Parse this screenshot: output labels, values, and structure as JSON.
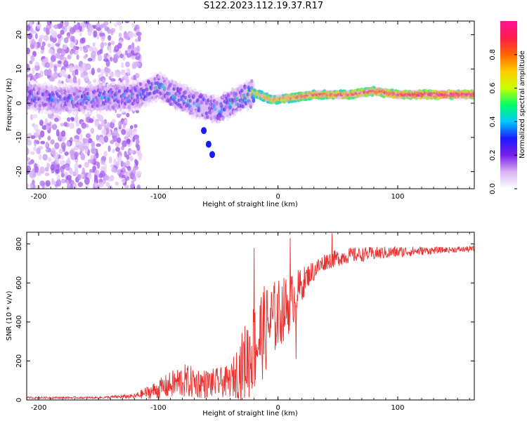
{
  "title": "S122.2023.112.19.37.R17",
  "chart_data": [
    {
      "type": "heatmap",
      "xlabel": "Height of straight line (km)",
      "ylabel": "Frequency (Hz)",
      "xlim": [
        -210,
        164
      ],
      "ylim": [
        -25,
        24
      ],
      "x_ticks": [
        -200,
        -100,
        0,
        100
      ],
      "y_ticks": [
        -20,
        -10,
        0,
        10,
        20
      ],
      "colorbar": {
        "label": "Normalized spectral amplitude",
        "range": [
          0,
          1
        ],
        "ticks": [
          "0.0",
          "0.2",
          "0.4",
          "0.6",
          "0.8"
        ],
        "colors": [
          "#ffffff",
          "#d9b3f5",
          "#7a1ee8",
          "#1a1aff",
          "#00c8ff",
          "#00ff66",
          "#c8ff00",
          "#ffcc00",
          "#ff6600",
          "#ff1a4d",
          "#ff1493"
        ]
      },
      "features": {
        "scatter_noise_x_range": [
          -210,
          -115
        ],
        "scatter_noise_y_range": [
          -25,
          24
        ],
        "ridge_points": [
          {
            "x": -210,
            "y": 2,
            "amp": 0.35
          },
          {
            "x": -180,
            "y": 1,
            "amp": 0.35
          },
          {
            "x": -150,
            "y": 1.5,
            "amp": 0.4
          },
          {
            "x": -120,
            "y": 2,
            "amp": 0.4
          },
          {
            "x": -100,
            "y": 5,
            "amp": 0.45
          },
          {
            "x": -85,
            "y": 2,
            "amp": 0.45
          },
          {
            "x": -70,
            "y": 0,
            "amp": 0.45
          },
          {
            "x": -50,
            "y": -2,
            "amp": 0.4
          },
          {
            "x": -35,
            "y": 1,
            "amp": 0.5
          },
          {
            "x": -20,
            "y": 3,
            "amp": 0.7
          },
          {
            "x": -5,
            "y": 1,
            "amp": 0.75
          },
          {
            "x": 10,
            "y": 1.5,
            "amp": 0.8
          },
          {
            "x": 30,
            "y": 2.5,
            "amp": 0.85
          },
          {
            "x": 60,
            "y": 2.5,
            "amp": 0.85
          },
          {
            "x": 80,
            "y": 3.5,
            "amp": 0.9
          },
          {
            "x": 100,
            "y": 2.5,
            "amp": 0.9
          },
          {
            "x": 130,
            "y": 2.5,
            "amp": 0.95
          },
          {
            "x": 164,
            "y": 2.5,
            "amp": 0.95
          }
        ],
        "tail_points": [
          {
            "x": -62,
            "y": -8
          },
          {
            "x": -58,
            "y": -12
          },
          {
            "x": -55,
            "y": -15
          }
        ]
      }
    },
    {
      "type": "line",
      "xlabel": "Height of straight line (km)",
      "ylabel": "SNR (10 * v/v)",
      "xlim": [
        -210,
        164
      ],
      "ylim": [
        0,
        860
      ],
      "x_ticks": [
        -200,
        -100,
        0,
        100
      ],
      "y_ticks": [
        0,
        200,
        400,
        600,
        800
      ],
      "series_color": "#e8302e",
      "envelope": [
        {
          "x": -210,
          "baseline": 10,
          "spread": 10
        },
        {
          "x": -150,
          "baseline": 10,
          "spread": 10
        },
        {
          "x": -120,
          "baseline": 15,
          "spread": 25
        },
        {
          "x": -100,
          "baseline": 40,
          "spread": 100
        },
        {
          "x": -80,
          "baseline": 70,
          "spread": 180
        },
        {
          "x": -60,
          "baseline": 60,
          "spread": 150
        },
        {
          "x": -40,
          "baseline": 70,
          "spread": 160
        },
        {
          "x": -25,
          "baseline": 150,
          "spread": 450
        },
        {
          "x": -15,
          "baseline": 250,
          "spread": 500
        },
        {
          "x": -5,
          "baseline": 350,
          "spread": 400
        },
        {
          "x": 10,
          "baseline": 450,
          "spread": 300
        },
        {
          "x": 25,
          "baseline": 620,
          "spread": 120
        },
        {
          "x": 40,
          "baseline": 700,
          "spread": 90
        },
        {
          "x": 60,
          "baseline": 730,
          "spread": 80
        },
        {
          "x": 100,
          "baseline": 750,
          "spread": 60
        },
        {
          "x": 140,
          "baseline": 765,
          "spread": 30
        },
        {
          "x": 164,
          "baseline": 770,
          "spread": 30
        }
      ],
      "notable_spikes": [
        {
          "x": -20,
          "y": 780
        },
        {
          "x": 10,
          "y": 830
        },
        {
          "x": 45,
          "y": 855
        },
        {
          "x": 15,
          "y": 210
        }
      ]
    }
  ]
}
